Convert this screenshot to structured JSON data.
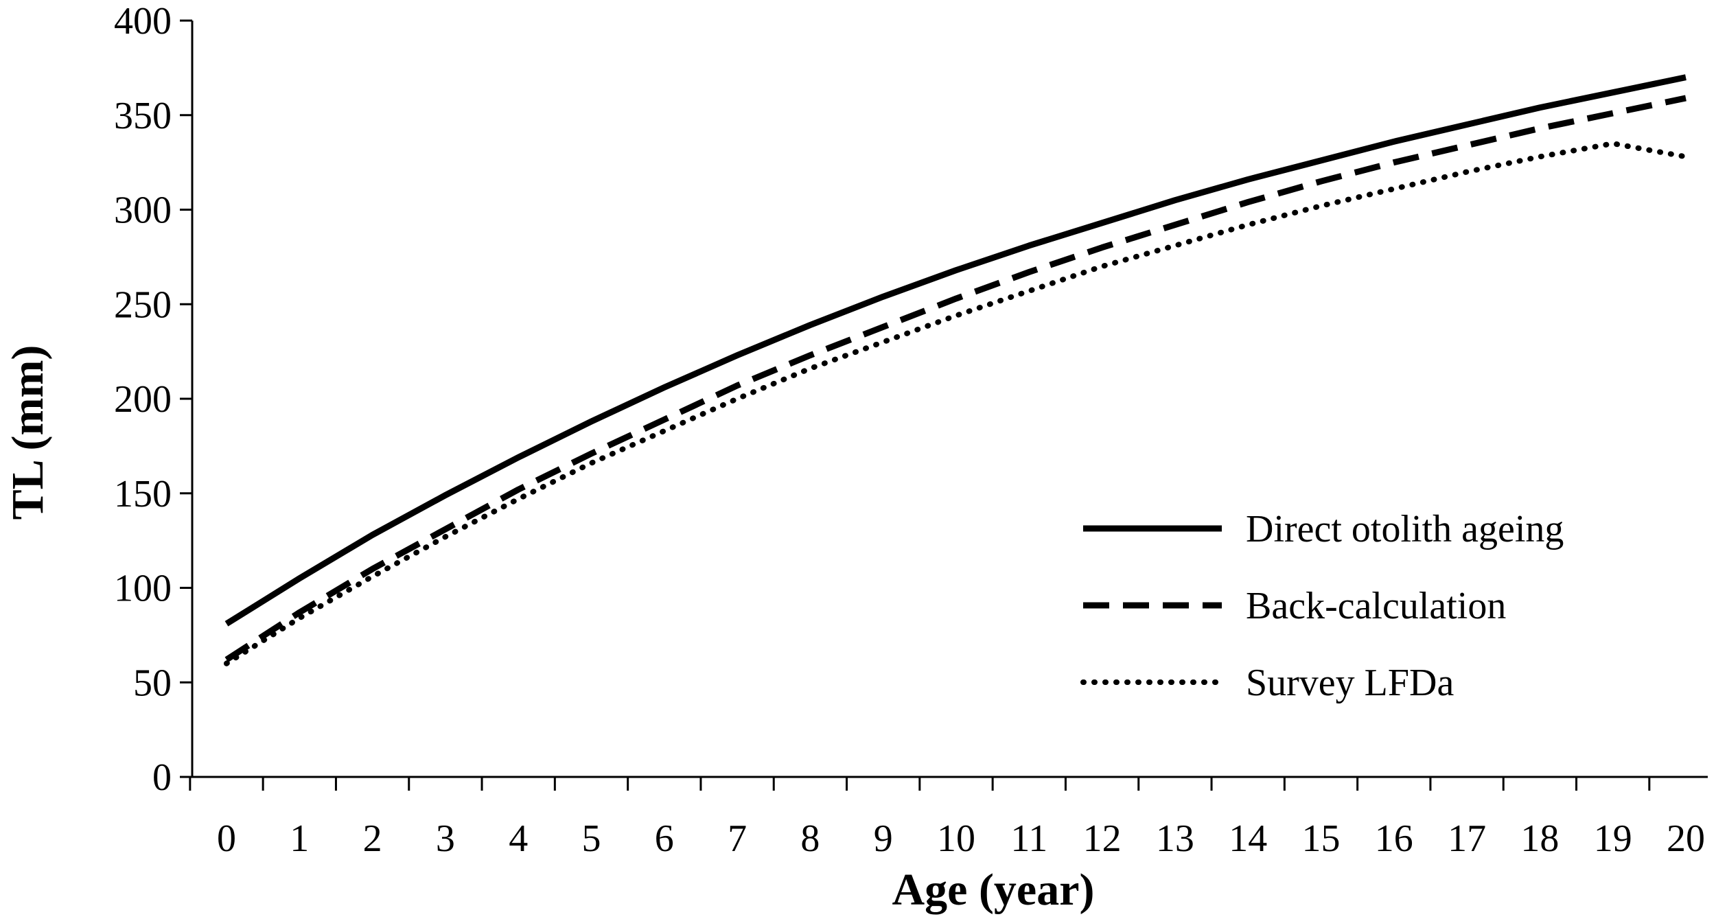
{
  "chart_data": {
    "type": "line",
    "xlabel": "Age (year)",
    "ylabel": "TL (mm)",
    "x": [
      0,
      1,
      2,
      3,
      4,
      5,
      6,
      7,
      8,
      9,
      10,
      11,
      12,
      13,
      14,
      15,
      16,
      17,
      18,
      19,
      20
    ],
    "xlim": [
      0,
      20
    ],
    "ylim": [
      0,
      400
    ],
    "yticks": [
      0,
      50,
      100,
      150,
      200,
      250,
      300,
      350,
      400
    ],
    "grid": false,
    "legend": "lower-right",
    "series": [
      {
        "name": "Direct otolith ageing",
        "style": "solid",
        "color": "#000000",
        "values": [
          81,
          105,
          128,
          149,
          169,
          188,
          206,
          223,
          239,
          254,
          268,
          281,
          293,
          305,
          316,
          326,
          336,
          345,
          354,
          362,
          370
        ]
      },
      {
        "name": "Back-calculation",
        "style": "dashed",
        "color": "#000000",
        "values": [
          62,
          87,
          110,
          131,
          152,
          171,
          189,
          207,
          223,
          238,
          253,
          267,
          280,
          292,
          304,
          315,
          325,
          334,
          343,
          351,
          359
        ]
      },
      {
        "name": "Survey LFDa",
        "style": "dotted",
        "color": "#000000",
        "values": [
          60,
          84,
          106,
          127,
          147,
          166,
          183,
          200,
          216,
          230,
          244,
          257,
          270,
          281,
          292,
          302,
          311,
          320,
          328,
          335,
          328
        ]
      }
    ]
  }
}
